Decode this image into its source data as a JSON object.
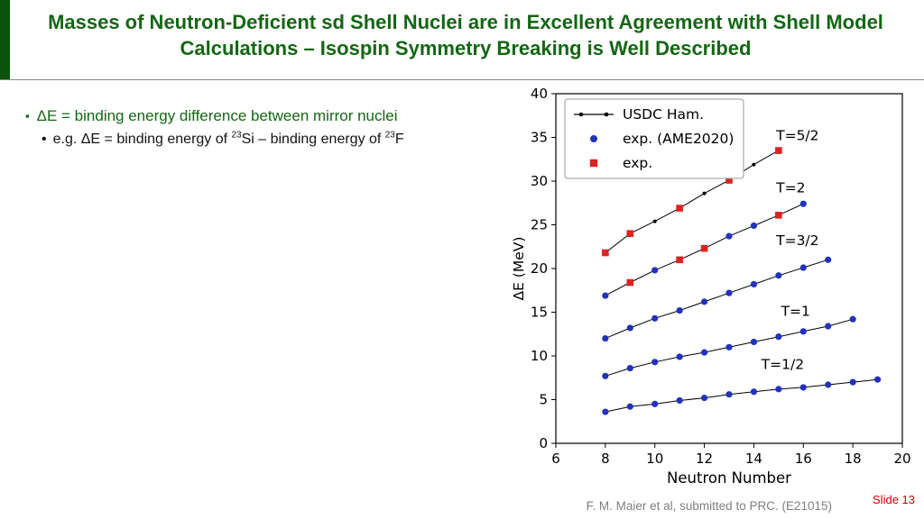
{
  "slide": {
    "title": "Masses of Neutron-Deficient sd Shell Nuclei are in Excellent Agreement with Shell Model Calculations – Isospin Symmetry Breaking is Well Described",
    "bullet1_marker": "▪",
    "bullet1": "ΔE = binding energy difference between mirror nuclei",
    "bullet2_marker": "•",
    "bullet2_parts": {
      "p1": "e.g. ΔE = binding energy of ",
      "sup1": "23",
      "p2": "Si – binding energy of ",
      "sup2": "23",
      "p3": "F"
    },
    "footer_credit": "F. M. Maier et al, submitted to PRC. (E21015)",
    "slide_number": "Slide 13",
    "colors": {
      "title_green": "#146614",
      "bar_green": "#0d520d",
      "slide_number_red": "#cc0000",
      "footer_gray": "#7f7f7f"
    }
  },
  "chart_data": {
    "type": "line",
    "title": "",
    "xlabel": "Neutron Number",
    "ylabel": "ΔE (MeV)",
    "xlim": [
      6,
      20
    ],
    "ylim": [
      0,
      40
    ],
    "xticks": [
      6,
      8,
      10,
      12,
      14,
      16,
      18,
      20
    ],
    "yticks": [
      0,
      5,
      10,
      15,
      20,
      25,
      30,
      35,
      40
    ],
    "grid": false,
    "legend_position": "upper left",
    "colors": {
      "theory": "#000000",
      "exp_blue": "#2233bb",
      "exp_red": "#dd2222"
    },
    "legend": [
      {
        "label": "USDC Ham.",
        "marker": "line-dot",
        "color": "#000000"
      },
      {
        "label": "exp. (AME2020)",
        "marker": "dot",
        "color": "#2233bb"
      },
      {
        "label": "exp.",
        "marker": "square",
        "color": "#dd2222"
      }
    ],
    "series": [
      {
        "name": "T=1/2",
        "label_x": 14.3,
        "label_y": 8.5,
        "x": [
          8,
          9,
          10,
          11,
          12,
          13,
          14,
          15,
          16,
          17,
          18,
          19
        ],
        "y": [
          3.6,
          4.2,
          4.5,
          4.9,
          5.2,
          5.6,
          5.9,
          6.2,
          6.4,
          6.7,
          7.0,
          7.3
        ],
        "exp_blue_x": [
          8,
          9,
          10,
          11,
          12,
          13,
          14,
          15,
          16,
          17,
          18,
          19
        ],
        "exp_red_x": []
      },
      {
        "name": "T=1",
        "label_x": 15.1,
        "label_y": 14.6,
        "x": [
          8,
          9,
          10,
          11,
          12,
          13,
          14,
          15,
          16,
          17,
          18
        ],
        "y": [
          7.7,
          8.6,
          9.3,
          9.9,
          10.4,
          11.0,
          11.6,
          12.2,
          12.8,
          13.4,
          14.2
        ],
        "exp_blue_x": [
          8,
          9,
          10,
          11,
          12,
          13,
          14,
          15,
          16,
          17,
          18
        ],
        "exp_red_x": []
      },
      {
        "name": "T=3/2",
        "label_x": 14.9,
        "label_y": 22.7,
        "x": [
          8,
          9,
          10,
          11,
          12,
          13,
          14,
          15,
          16,
          17
        ],
        "y": [
          12.0,
          13.2,
          14.3,
          15.2,
          16.2,
          17.2,
          18.2,
          19.2,
          20.1,
          21.0
        ],
        "exp_blue_x": [
          8,
          9,
          10,
          11,
          12,
          13,
          14,
          15,
          16,
          17
        ],
        "exp_red_x": []
      },
      {
        "name": "T=2",
        "label_x": 14.9,
        "label_y": 28.7,
        "x": [
          8,
          9,
          10,
          11,
          12,
          13,
          14,
          15,
          16
        ],
        "y": [
          16.9,
          18.4,
          19.8,
          21.0,
          22.3,
          23.7,
          24.9,
          26.1,
          27.4
        ],
        "exp_blue_x": [
          8,
          10,
          13,
          14,
          16
        ],
        "exp_red_x": [
          9,
          11,
          12,
          15
        ]
      },
      {
        "name": "T=5/2",
        "label_x": 14.9,
        "label_y": 34.7,
        "x": [
          8,
          9,
          10,
          11,
          12,
          13,
          14,
          15
        ],
        "y": [
          21.8,
          24.0,
          25.4,
          26.9,
          28.6,
          30.1,
          31.9,
          33.5
        ],
        "exp_blue_x": [],
        "exp_red_x": [
          8,
          9,
          11,
          13,
          15
        ]
      }
    ]
  }
}
